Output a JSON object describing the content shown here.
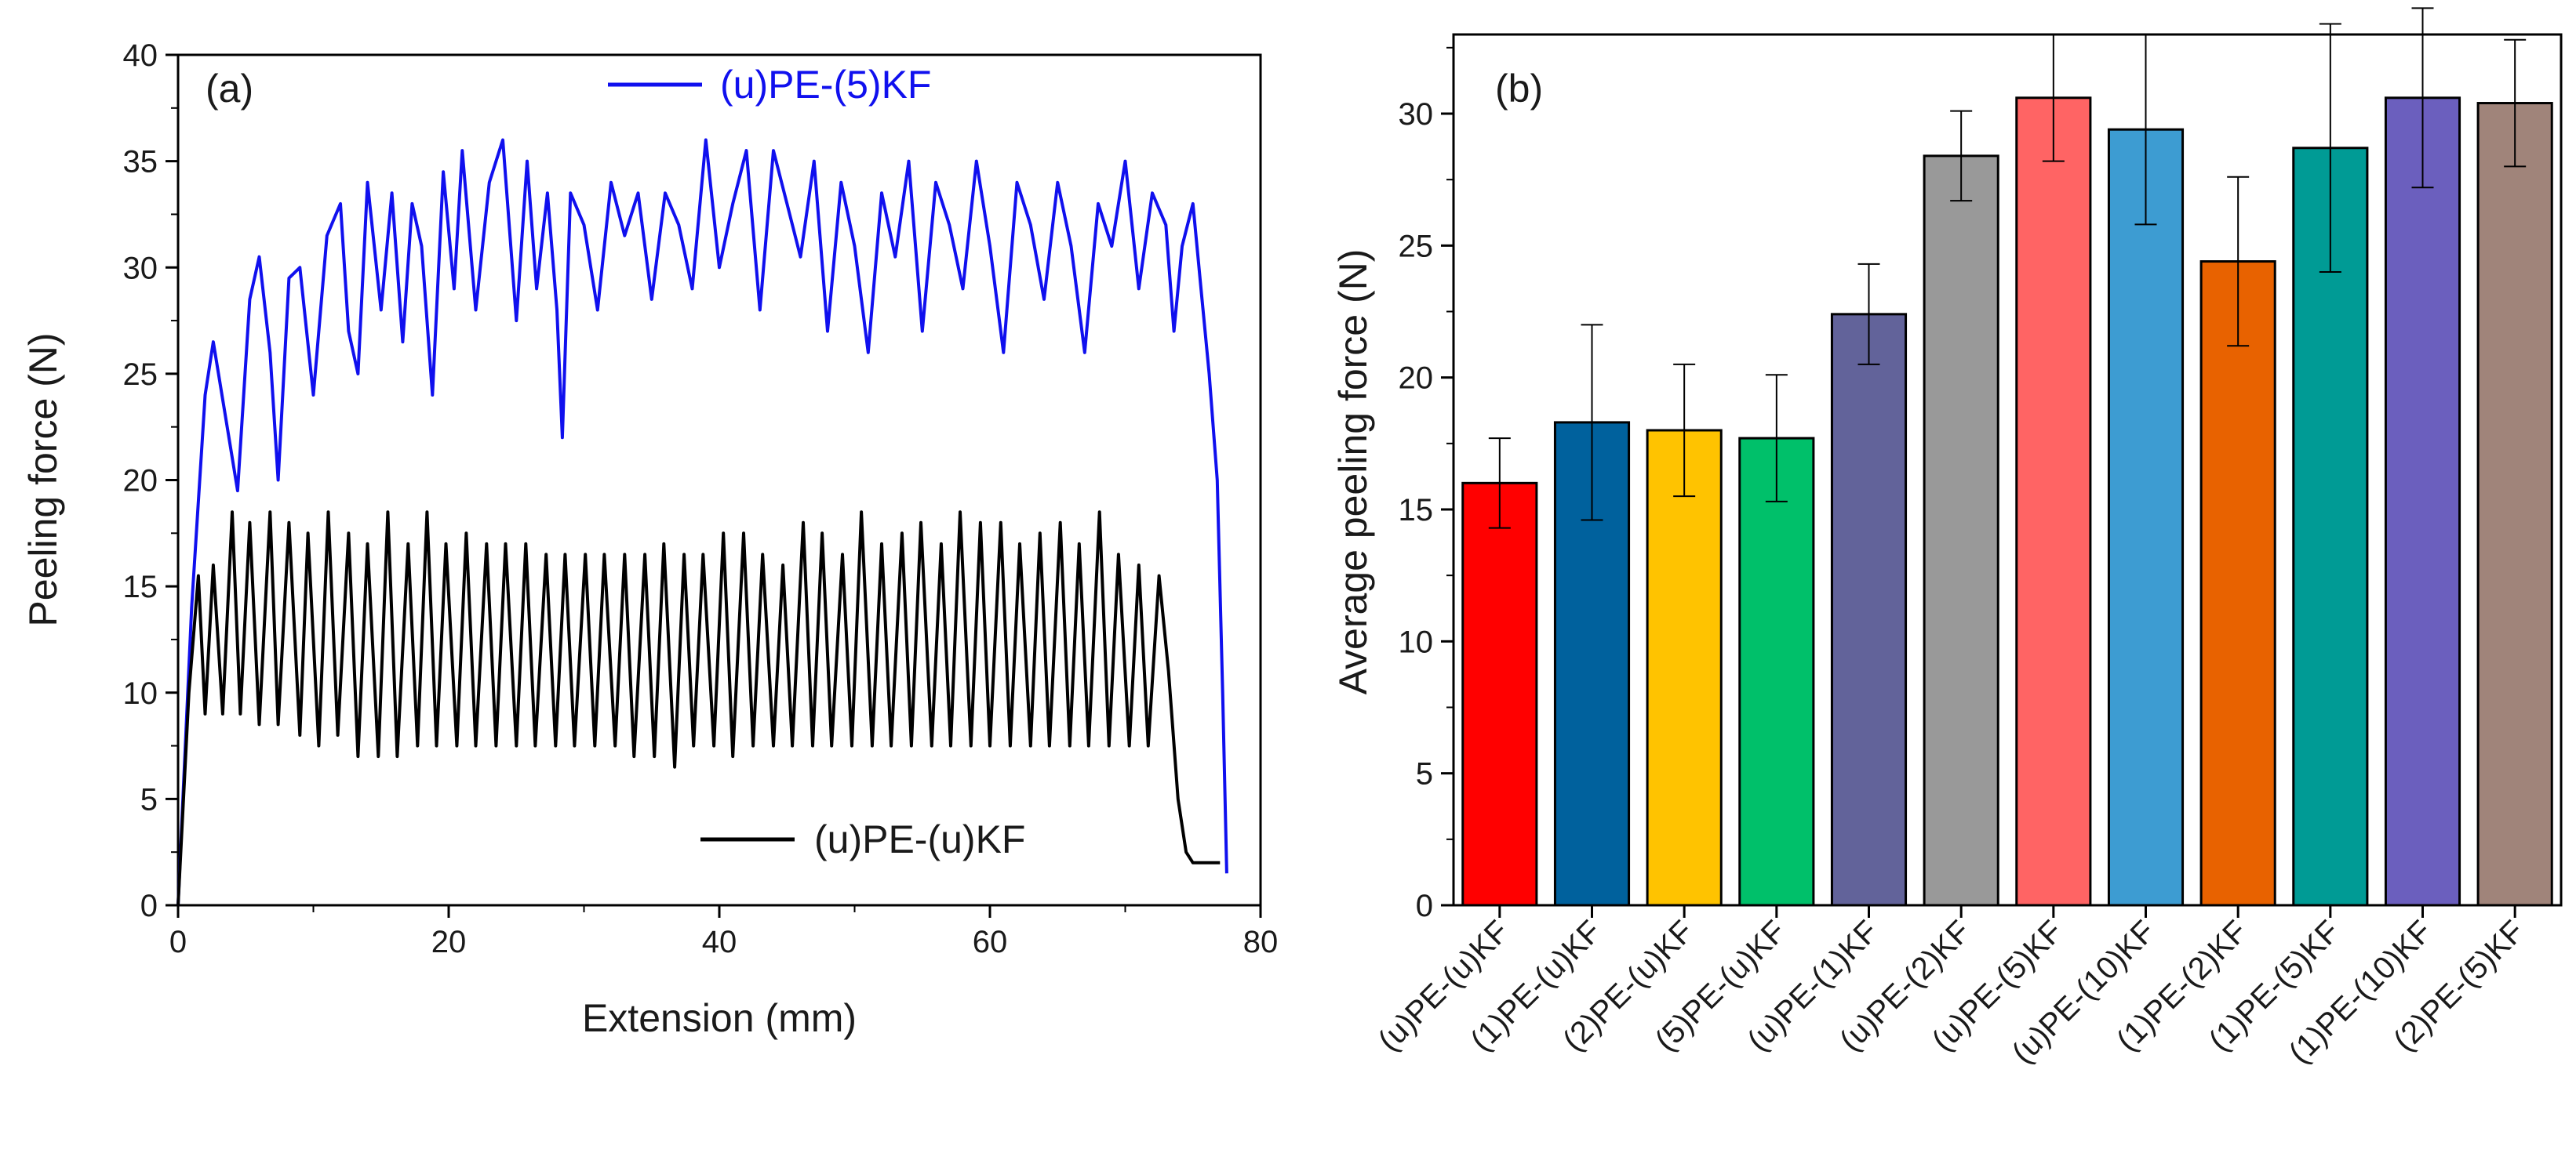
{
  "chart_data": [
    {
      "panel": "(a)",
      "type": "line",
      "xlabel": "Extension (mm)",
      "ylabel": "Peeling force (N)",
      "xlim": [
        0,
        80
      ],
      "ylim": [
        0,
        40
      ],
      "xticks": [
        0,
        20,
        40,
        60,
        80
      ],
      "yticks": [
        0,
        5,
        10,
        15,
        20,
        25,
        30,
        35,
        40
      ],
      "grid": false,
      "series": [
        {
          "name": "(u)PE-(5)KF",
          "color": "#1010ee",
          "legend_position": "top",
          "x": [
            0,
            1,
            2,
            2.6,
            3.5,
            4.4,
            5.3,
            6.0,
            6.8,
            7.4,
            8.2,
            9.0,
            10.0,
            11.0,
            12.0,
            12.6,
            13.3,
            14.0,
            15.0,
            15.8,
            16.6,
            17.3,
            18.0,
            18.8,
            19.6,
            20.4,
            21.0,
            22.0,
            23.0,
            24.0,
            25.0,
            25.8,
            26.5,
            27.3,
            28.0,
            28.4,
            29.0,
            30.0,
            31.0,
            32.0,
            33.0,
            34.0,
            35.0,
            36.0,
            37.0,
            38.0,
            39.0,
            40.0,
            41.0,
            42.0,
            43.0,
            44.0,
            45.0,
            46.0,
            47.0,
            48.0,
            49.0,
            50.0,
            51.0,
            52.0,
            53.0,
            54.0,
            55.0,
            56.0,
            57.0,
            58.0,
            59.0,
            60.0,
            61.0,
            62.0,
            63.0,
            64.0,
            65.0,
            66.0,
            67.0,
            68.0,
            69.0,
            70.0,
            71.0,
            72.0,
            73.0,
            73.6,
            74.2,
            75.0,
            75.6,
            76.2,
            76.8,
            77.2,
            77.5
          ],
          "y": [
            0,
            14,
            24,
            26.5,
            23,
            19.5,
            28.5,
            30.5,
            26,
            20,
            29.5,
            30,
            24,
            31.5,
            33,
            27,
            25,
            34,
            28,
            33.5,
            26.5,
            33,
            31,
            24,
            34.5,
            29,
            35.5,
            28,
            34,
            36,
            27.5,
            35,
            29,
            33.5,
            28,
            22,
            33.5,
            32,
            28,
            34,
            31.5,
            33.5,
            28.5,
            33.5,
            32,
            29,
            36,
            30,
            33,
            35.5,
            28,
            35.5,
            33,
            30.5,
            35,
            27,
            34,
            31,
            26,
            33.5,
            30.5,
            35,
            27,
            34,
            32,
            29,
            35,
            31,
            26,
            34,
            32,
            28.5,
            34,
            31,
            26,
            33,
            31,
            35,
            29,
            33.5,
            32,
            27,
            31,
            33,
            29,
            25,
            20,
            10,
            1.5
          ]
        },
        {
          "name": "(u)PE-(u)KF",
          "color": "#000000",
          "legend_position": "bottom",
          "x": [
            0,
            0.8,
            1.5,
            2.0,
            2.6,
            3.3,
            4.0,
            4.6,
            5.3,
            6.0,
            6.8,
            7.4,
            8.2,
            9.0,
            9.6,
            10.4,
            11.1,
            11.8,
            12.6,
            13.3,
            14.0,
            14.8,
            15.5,
            16.2,
            17.0,
            17.7,
            18.4,
            19.1,
            19.8,
            20.6,
            21.3,
            22.0,
            22.8,
            23.5,
            24.2,
            25.0,
            25.7,
            26.4,
            27.2,
            27.9,
            28.6,
            29.3,
            30.1,
            30.8,
            31.5,
            32.3,
            33.0,
            33.7,
            34.5,
            35.2,
            35.9,
            36.7,
            37.4,
            38.1,
            38.8,
            39.6,
            40.3,
            41.0,
            41.8,
            42.5,
            43.2,
            44.0,
            44.7,
            45.4,
            46.2,
            46.9,
            47.6,
            48.3,
            49.1,
            49.8,
            50.5,
            51.3,
            52.0,
            52.7,
            53.5,
            54.2,
            54.9,
            55.7,
            56.4,
            57.1,
            57.8,
            58.6,
            59.3,
            60.0,
            60.8,
            61.5,
            62.2,
            63.0,
            63.7,
            64.4,
            65.2,
            65.9,
            66.6,
            67.3,
            68.1,
            68.8,
            69.5,
            70.3,
            71.0,
            71.7,
            72.5,
            73.2,
            73.9,
            74.5,
            75.0,
            75.5,
            76.0,
            76.5,
            77.0
          ],
          "y": [
            0,
            10,
            15.5,
            9,
            16,
            9,
            18.5,
            9,
            18,
            8.5,
            18.5,
            8.5,
            18,
            8,
            17.5,
            7.5,
            18.5,
            8,
            17.5,
            7,
            17,
            7,
            18.5,
            7,
            17,
            7.5,
            18.5,
            7.5,
            17,
            7.5,
            17.5,
            7.5,
            17,
            7.5,
            17,
            7.5,
            17,
            7.5,
            16.5,
            7.5,
            16.5,
            7.5,
            16.5,
            7.5,
            16.5,
            7.5,
            16.5,
            7,
            16.5,
            7,
            17,
            6.5,
            16.5,
            7.5,
            16.5,
            7.5,
            17.5,
            7,
            17.5,
            7.5,
            16.5,
            7.5,
            16,
            7.5,
            18,
            7.5,
            17.5,
            7.5,
            16.5,
            7.5,
            18.5,
            7.5,
            17,
            7.5,
            17.5,
            7.5,
            18,
            7.5,
            17,
            7.5,
            18.5,
            7.5,
            18,
            7.5,
            18,
            7.5,
            17,
            7.5,
            17.5,
            7.5,
            18,
            7.5,
            17,
            7.5,
            18.5,
            7.5,
            16.5,
            7.5,
            16,
            7.5,
            15.5,
            11,
            5,
            2.5,
            2.0,
            2.0,
            2.0,
            2.0,
            2.0
          ]
        }
      ]
    },
    {
      "panel": "(b)",
      "type": "bar",
      "xlabel": "",
      "ylabel": "Average peeling force (N)",
      "ylim": [
        0,
        33
      ],
      "yticks": [
        0,
        5,
        10,
        15,
        20,
        25,
        30
      ],
      "grid": false,
      "categories": [
        "(u)PE-(u)KF",
        "(1)PE-(u)KF",
        "(2)PE-(u)KF",
        "(5)PE-(u)KF",
        "(u)PE-(1)KF",
        "(u)PE-(2)KF",
        "(u)PE-(5)KF",
        "(u)PE-(10)KF",
        "(1)PE-(2)KF",
        "(1)PE-(5)KF",
        "(1)PE-(10)KF",
        "(2)PE-(5)KF"
      ],
      "values": [
        16.0,
        18.3,
        18.0,
        17.7,
        22.4,
        28.4,
        30.6,
        29.4,
        24.4,
        28.7,
        30.6,
        30.4
      ],
      "errors": [
        1.7,
        3.7,
        2.5,
        2.4,
        1.9,
        1.7,
        2.4,
        3.6,
        3.2,
        4.7,
        3.4,
        2.4
      ],
      "colors": [
        "#ff0000",
        "#00619d",
        "#ffc300",
        "#00c06a",
        "#62639a",
        "#999999",
        "#ff6464",
        "#3d9cd2",
        "#e86200",
        "#009b95",
        "#6b5fbe",
        "#a0847a"
      ]
    }
  ]
}
